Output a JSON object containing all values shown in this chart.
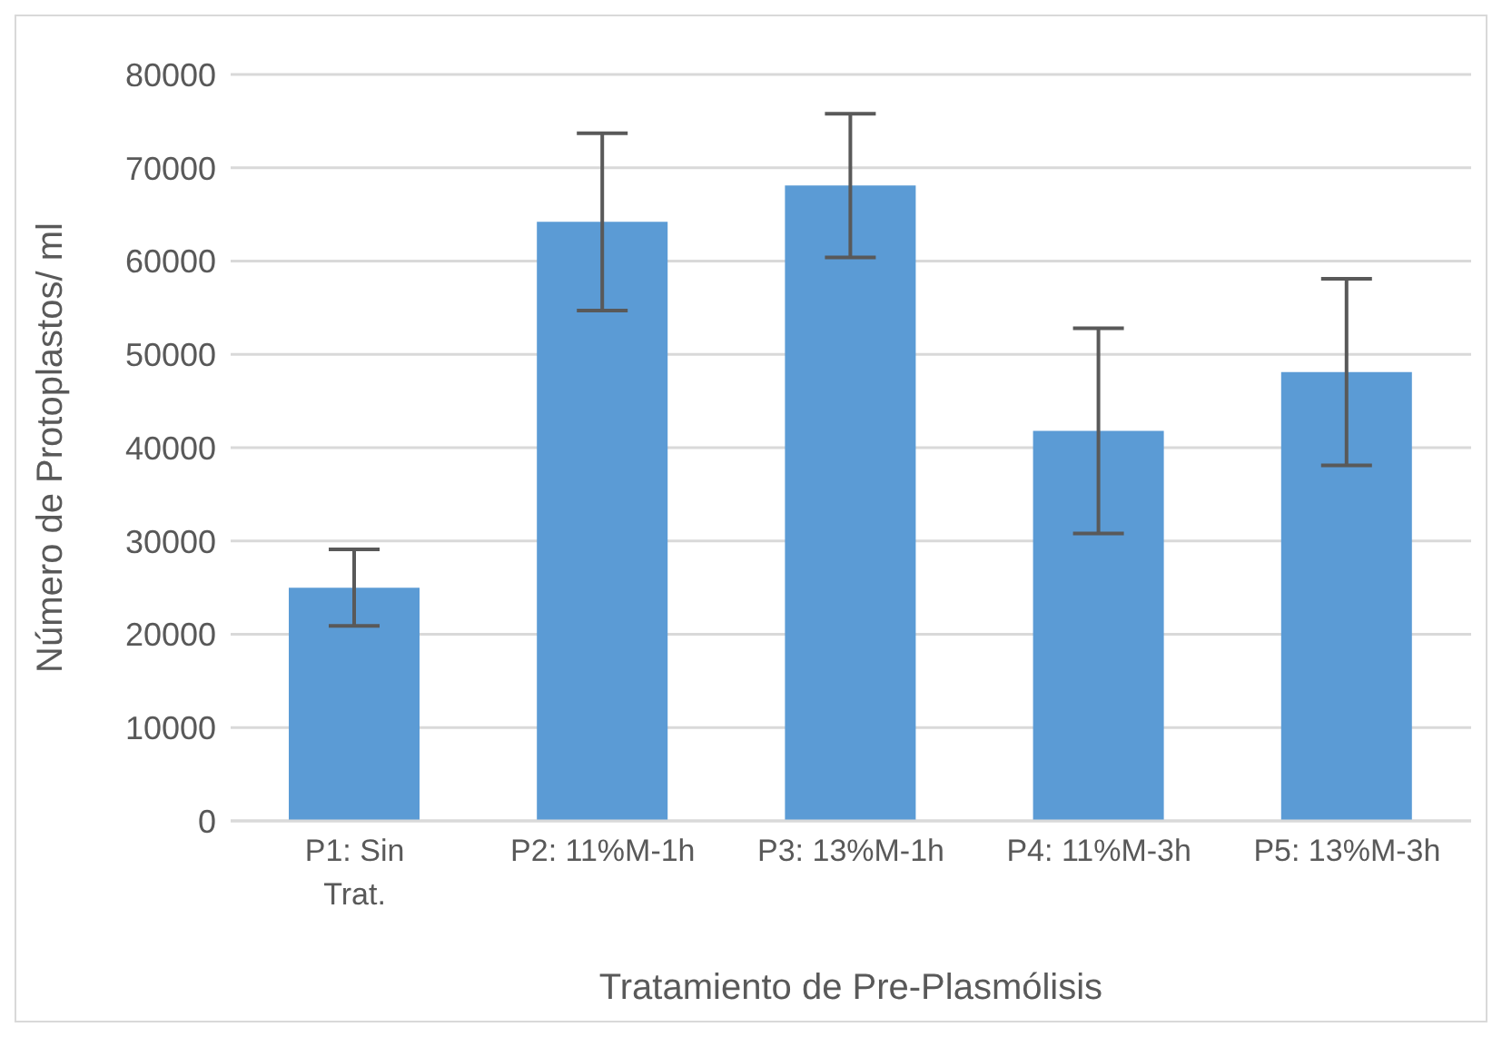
{
  "chart_data": {
    "type": "bar",
    "xlabel": "Tratamiento de Pre-Plasmólisis",
    "ylabel": "Número de Protoplastos/ ml",
    "categories": [
      "P1: Sin Trat.",
      "P2: 11%M-1h",
      "P3: 13%M-1h",
      "P4: 11%M-3h",
      "P5: 13%M-3h"
    ],
    "values": [
      25000,
      64200,
      68100,
      41800,
      48100
    ],
    "errors": [
      4100,
      9500,
      7700,
      11000,
      10000
    ],
    "color": "#5b9bd5",
    "ylim": [
      0,
      80000
    ],
    "yticks": [
      0,
      10000,
      20000,
      30000,
      40000,
      50000,
      60000,
      70000,
      80000
    ],
    "grid": "y",
    "legend": false
  }
}
